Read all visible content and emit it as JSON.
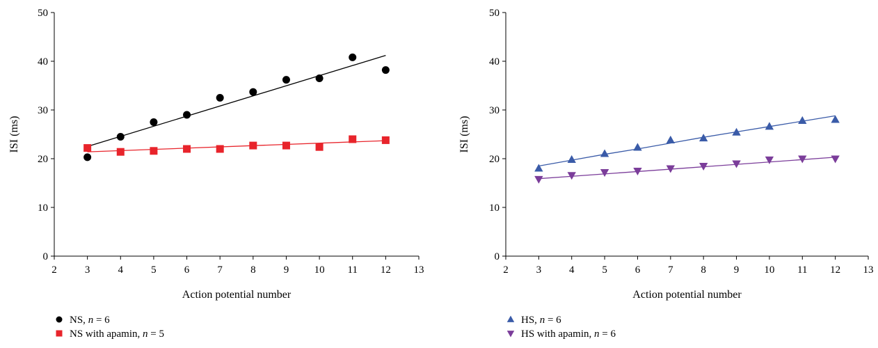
{
  "chart_data": [
    {
      "type": "scatter",
      "xlabel": "Action potential number",
      "ylabel": "ISI (ms)",
      "xlim": [
        2,
        13
      ],
      "ylim": [
        0,
        50
      ],
      "xticks": [
        2,
        3,
        4,
        5,
        6,
        7,
        8,
        9,
        10,
        11,
        12,
        13
      ],
      "yticks": [
        0,
        10,
        20,
        30,
        40,
        50
      ],
      "grid": false,
      "legend_placement": "bottom-left",
      "series": [
        {
          "legend_prefix": "NS, ",
          "legend_n": "n",
          "legend_suffix": " = 6",
          "marker": "circle",
          "color": "#000000",
          "x": [
            3,
            4,
            5,
            6,
            7,
            8,
            9,
            10,
            11,
            12
          ],
          "y": [
            20.3,
            24.5,
            27.5,
            29.0,
            32.5,
            33.7,
            36.2,
            36.5,
            40.8,
            38.2
          ],
          "trendline": [
            [
              3,
              22.5
            ],
            [
              12,
              41.2
            ]
          ]
        },
        {
          "legend_prefix": "NS with apamin, ",
          "legend_n": "n",
          "legend_suffix": " = 5",
          "marker": "square",
          "color": "#e8242b",
          "x": [
            3,
            4,
            5,
            6,
            7,
            8,
            9,
            10,
            11,
            12
          ],
          "y": [
            22.2,
            21.4,
            21.6,
            22.0,
            22.0,
            22.7,
            22.7,
            22.4,
            24.0,
            23.8
          ],
          "trendline": [
            [
              3,
              21.4
            ],
            [
              12,
              23.7
            ]
          ]
        }
      ]
    },
    {
      "type": "scatter",
      "xlabel": "Action potential number",
      "ylabel": "ISI (ms)",
      "xlim": [
        2,
        13
      ],
      "ylim": [
        0,
        50
      ],
      "xticks": [
        2,
        3,
        4,
        5,
        6,
        7,
        8,
        9,
        10,
        11,
        12,
        13
      ],
      "yticks": [
        0,
        10,
        20,
        30,
        40,
        50
      ],
      "grid": false,
      "legend_placement": "bottom-left",
      "series": [
        {
          "legend_prefix": "HS, ",
          "legend_n": "n",
          "legend_suffix": " = 6",
          "marker": "triangle-up",
          "color": "#3a5ba8",
          "x": [
            3,
            4,
            5,
            6,
            7,
            8,
            9,
            10,
            11,
            12
          ],
          "y": [
            18.0,
            19.8,
            21.0,
            22.3,
            23.8,
            24.2,
            25.4,
            26.6,
            27.8,
            28.0
          ],
          "trendline": [
            [
              3,
              18.5
            ],
            [
              4,
              19.7
            ],
            [
              5,
              20.9
            ],
            [
              6,
              22.0
            ],
            [
              7,
              23.2
            ],
            [
              8,
              24.4
            ],
            [
              9,
              25.5
            ],
            [
              10,
              26.6
            ],
            [
              11,
              27.7
            ],
            [
              12,
              28.8
            ]
          ]
        },
        {
          "legend_prefix": "HS with apamin, ",
          "legend_n": "n",
          "legend_suffix": " = 6",
          "marker": "triangle-down",
          "color": "#7b3d9a",
          "x": [
            3,
            4,
            5,
            6,
            7,
            8,
            9,
            10,
            11,
            12
          ],
          "y": [
            15.8,
            16.6,
            17.2,
            17.5,
            18.0,
            18.5,
            19.0,
            19.8,
            20.0,
            20.0
          ],
          "trendline": [
            [
              3,
              15.9
            ],
            [
              12,
              20.3
            ]
          ]
        }
      ]
    }
  ]
}
